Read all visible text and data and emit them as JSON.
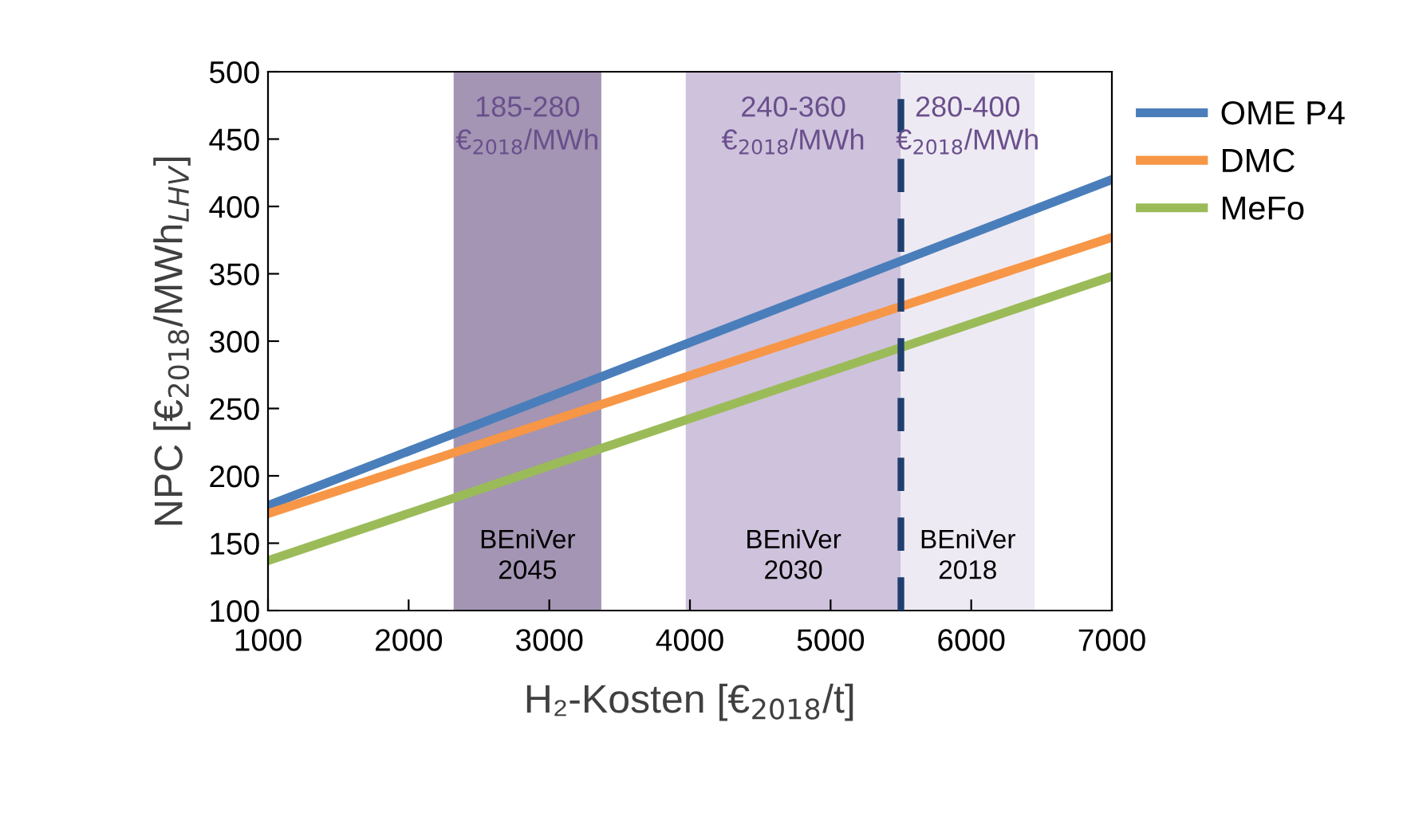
{
  "chart_data": {
    "type": "line",
    "xlabel": "H₂-Kosten [€$_{2018}$/t]",
    "ylabel": "NPC [€$_{2018}$/MWh$_{LHV}$]",
    "x": [
      1000,
      7000
    ],
    "series": [
      {
        "name": "OME P4",
        "color": "#4a7ebb",
        "values": [
          178,
          420
        ]
      },
      {
        "name": "DMC",
        "color": "#f79646",
        "values": [
          172,
          377
        ]
      },
      {
        "name": "MeFo",
        "color": "#9bbb59",
        "values": [
          137,
          348
        ]
      }
    ],
    "xlim": [
      1000,
      7000
    ],
    "xticks": [
      1000,
      2000,
      3000,
      4000,
      5000,
      6000,
      7000
    ],
    "ylim": [
      100,
      500
    ],
    "yticks": [
      100,
      150,
      200,
      250,
      300,
      350,
      400,
      450,
      500
    ],
    "bands": [
      {
        "axis": "x",
        "from": 2320,
        "to": 3370,
        "color": "#a395b3",
        "label": "BEniVer\n2045"
      },
      {
        "axis": "x",
        "from": 3970,
        "to": 5500,
        "color": "#cfc2dc",
        "label": "BEniVer\n2030"
      },
      {
        "axis": "x",
        "from": 5500,
        "to": 6450,
        "color": "#eeeaf3",
        "label": "BEniVer\n2018"
      }
    ],
    "ref_lines": [
      {
        "axis": "x",
        "value": 5500,
        "color": "#1f3f6e",
        "line_style": "dashed"
      }
    ],
    "annotations": [
      "185-280\n€$_{2018}$/MWh",
      "240-360\n€$_{2018}$/MWh",
      "280-400\n€$_{2018}$/MWh"
    ],
    "grid": false,
    "legend": "right",
    "line_style": "solid",
    "marker": "none"
  }
}
